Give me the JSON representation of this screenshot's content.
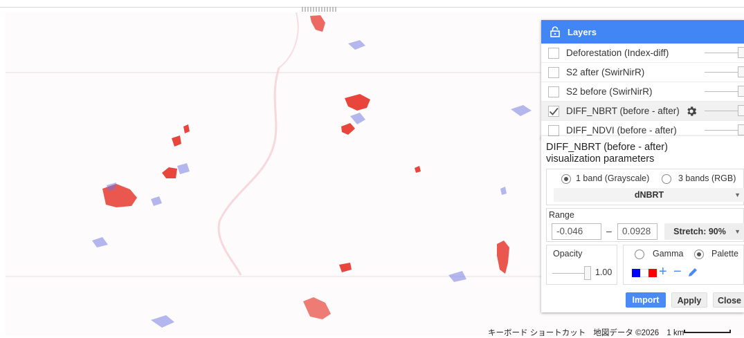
{
  "layers_panel": {
    "title": "Layers",
    "items": [
      {
        "label": "Deforestation (Index-diff)",
        "checked": false
      },
      {
        "label": "S2 after (SwirNirR)",
        "checked": false
      },
      {
        "label": "S2 before (SwirNirR)",
        "checked": false
      },
      {
        "label": "DIFF_NBRT (before - after)",
        "checked": true
      },
      {
        "label": "DIFF_NDVI (before - after)",
        "checked": false
      }
    ]
  },
  "viz_panel": {
    "title_line1": "DIFF_NBRT (before - after)",
    "title_line2": "visualization parameters",
    "band_mode_1": "1 band (Grayscale)",
    "band_mode_3": "3 bands (RGB)",
    "band_selected": "1 band (Grayscale)",
    "band": "dNBRT",
    "range_label": "Range",
    "range_min": "-0.046",
    "range_dash": "–",
    "range_max": "0.0928",
    "stretch": "Stretch: 90%",
    "opacity_label": "Opacity",
    "opacity_value": "1.00",
    "gamma_label": "Gamma",
    "palette_label": "Palette",
    "palette_selected": "Palette",
    "palette_colors": [
      "#0000ff",
      "#ffffff",
      "#ff0000"
    ],
    "add_symbol": "+",
    "remove_symbol": "−",
    "import_label": "Import",
    "apply_label": "Apply",
    "close_label": "Close"
  },
  "map_footer": {
    "shortcuts": "キーボード ショートカット",
    "attribution": "地図データ ©2026",
    "scale": "1 km"
  },
  "colors": {
    "accent": "#4285f4",
    "loss": "#e8453c",
    "gain": "#6a73e0"
  }
}
